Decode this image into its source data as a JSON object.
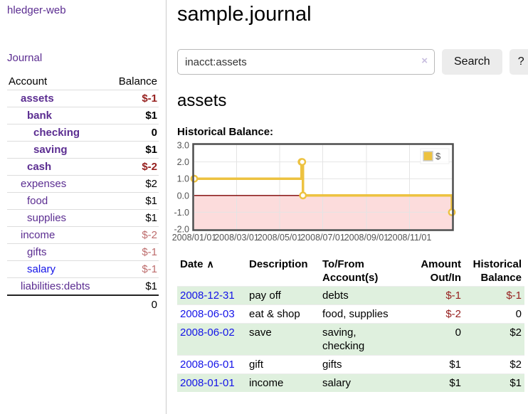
{
  "app_title": "hledger-web",
  "sidebar": {
    "journal_link": "Journal",
    "account_header": "Account",
    "balance_header": "Balance",
    "accounts": [
      {
        "name": "assets",
        "balance": "$-1",
        "level": 1,
        "bold": true,
        "balance_style": "negative-strong",
        "link_style": "purple"
      },
      {
        "name": "bank",
        "balance": "$1",
        "level": 2,
        "bold": true,
        "balance_style": "normal",
        "link_style": "purple"
      },
      {
        "name": "checking",
        "balance": "0",
        "level": 3,
        "bold": true,
        "balance_style": "normal",
        "link_style": "purple"
      },
      {
        "name": "saving",
        "balance": "$1",
        "level": 3,
        "bold": true,
        "balance_style": "normal",
        "link_style": "purple"
      },
      {
        "name": "cash",
        "balance": "$-2",
        "level": 2,
        "bold": true,
        "balance_style": "negative-strong",
        "link_style": "purple"
      },
      {
        "name": "expenses",
        "balance": "$2",
        "level": 1,
        "bold": false,
        "balance_style": "normal",
        "link_style": "purple"
      },
      {
        "name": "food",
        "balance": "$1",
        "level": 2,
        "bold": false,
        "balance_style": "normal",
        "link_style": "purple"
      },
      {
        "name": "supplies",
        "balance": "$1",
        "level": 2,
        "bold": false,
        "balance_style": "normal",
        "link_style": "purple"
      },
      {
        "name": "income",
        "balance": "$-2",
        "level": 1,
        "bold": false,
        "balance_style": "negative-weak",
        "link_style": "purple"
      },
      {
        "name": "gifts",
        "balance": "$-1",
        "level": 2,
        "bold": false,
        "balance_style": "negative-weak",
        "link_style": "purple"
      },
      {
        "name": "salary",
        "balance": "$-1",
        "level": 2,
        "bold": false,
        "balance_style": "negative-weak",
        "link_style": "blue"
      },
      {
        "name": "liabilities:debts",
        "balance": "$1",
        "level": 1,
        "bold": false,
        "balance_style": "normal",
        "link_style": "purple"
      }
    ],
    "total": "0"
  },
  "main": {
    "title": "sample.journal",
    "search": {
      "value": "inacct:assets",
      "clear_label": "×",
      "search_button": "Search",
      "help_button": "?"
    },
    "account_title": "assets",
    "chart_title": "Historical Balance:"
  },
  "chart_data": {
    "type": "line",
    "step": true,
    "title": "Historical Balance",
    "series": [
      {
        "name": "$",
        "color": "#edc240",
        "points": [
          [
            "2008-01-01",
            1
          ],
          [
            "2008-06-01",
            2
          ],
          [
            "2008-06-02",
            2
          ],
          [
            "2008-06-03",
            0
          ],
          [
            "2008-12-31",
            -1
          ]
        ]
      }
    ],
    "x_range": [
      "2008-01-01",
      "2008-12-31"
    ],
    "ylim": [
      -2,
      3
    ],
    "yticks": [
      3,
      2,
      1,
      0,
      -1,
      -2
    ],
    "ytick_labels": [
      "3.0",
      "2.0",
      "1.0",
      "0.0",
      "-1.0",
      "-2.0"
    ],
    "xticks": [
      "2008-01-01",
      "2008-03-01",
      "2008-05-01",
      "2008-07-01",
      "2008-09-01",
      "2008-11-01"
    ],
    "xtick_labels": [
      "2008/01/01",
      "2008/03/01",
      "2008/05/01",
      "2008/07/01",
      "2008/09/01",
      "2008/11/01"
    ],
    "grid": true,
    "legend_position": "top-right",
    "colors": {
      "negative_region": "#fcdcdc",
      "zero_line": "#7b0000",
      "grid": "#e4e4e4",
      "border": "#4d4d4d",
      "tick_text": "#545454"
    }
  },
  "register_table": {
    "headers": {
      "date": "Date",
      "sort_icon": "∧",
      "description": "Description",
      "account": "To/From Account(s)",
      "amount": "Amount Out/In",
      "balance": "Historical Balance"
    },
    "rows": [
      {
        "date": "2008-12-31",
        "description": "pay off",
        "account": "debts",
        "amount": "$-1",
        "balance": "$-1",
        "amount_negative": true,
        "balance_negative": true,
        "highlight": true
      },
      {
        "date": "2008-06-03",
        "description": "eat & shop",
        "account": "food, supplies",
        "amount": "$-2",
        "balance": "0",
        "amount_negative": true,
        "balance_negative": false,
        "highlight": false
      },
      {
        "date": "2008-06-02",
        "description": "save",
        "account": "saving, checking",
        "amount": "0",
        "balance": "$2",
        "amount_negative": false,
        "balance_negative": false,
        "highlight": true
      },
      {
        "date": "2008-06-01",
        "description": "gift",
        "account": "gifts",
        "amount": "$1",
        "balance": "$2",
        "amount_negative": false,
        "balance_negative": false,
        "highlight": false
      },
      {
        "date": "2008-01-01",
        "description": "income",
        "account": "salary",
        "amount": "$1",
        "balance": "$1",
        "amount_negative": false,
        "balance_negative": false,
        "highlight": true
      }
    ]
  },
  "colors": {
    "purple_link": "#5b2d91",
    "blue_link": "#1414e8",
    "negative_strong": "#96201f",
    "negative_weak": "#bd6c6c",
    "row_highlight": "#dff0de",
    "series_gold": "#edc240"
  }
}
